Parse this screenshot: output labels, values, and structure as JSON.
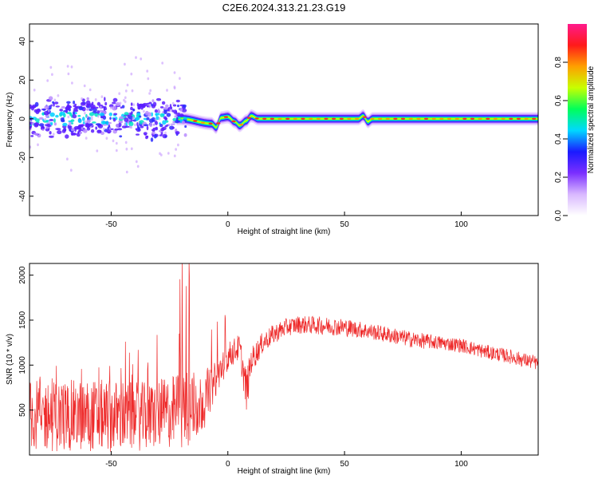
{
  "chart_data": [
    {
      "type": "heatmap",
      "title": "C2E6.2024.313.21.23.G19",
      "xlabel": "Height of straight line (km)",
      "ylabel": "Frequency (Hz)",
      "xlim": [
        -85,
        133
      ],
      "ylim": [
        -50,
        49
      ],
      "x_ticks": [
        -50,
        0,
        50,
        100
      ],
      "x_tick_labels": [
        "-50",
        "0",
        "50",
        "100"
      ],
      "y_ticks": [
        -40,
        -20,
        0,
        20,
        40
      ],
      "y_tick_labels": [
        "-40",
        "-20",
        "0",
        "20",
        "40"
      ],
      "colorbar": {
        "label": "Normalized spectral amplitude",
        "range": [
          0,
          1
        ],
        "ticks": [
          0.0,
          0.2,
          0.4,
          0.6,
          0.8
        ],
        "tick_labels": [
          "0.0",
          "0.2",
          "0.4",
          "0.6",
          "0.8"
        ],
        "colormap": [
          "#ffffff",
          "#d9b8ff",
          "#7b2fff",
          "#1a1aff",
          "#00d8ff",
          "#00ff5a",
          "#c8ff00",
          "#ffa000",
          "#ff1a1a",
          "#ff1a8c"
        ]
      },
      "ridge": [
        {
          "x": -85,
          "f": 0.0
        },
        {
          "x": -60,
          "f": 0.5
        },
        {
          "x": -20,
          "f": 0.0
        },
        {
          "x": -7,
          "f": -2.5
        },
        {
          "x": -5,
          "f": -4.5
        },
        {
          "x": -3,
          "f": 0.5
        },
        {
          "x": 0,
          "f": 1.0
        },
        {
          "x": 3,
          "f": -1.5
        },
        {
          "x": 5,
          "f": -3.5
        },
        {
          "x": 8,
          "f": -1.0
        },
        {
          "x": 10,
          "f": 1.5
        },
        {
          "x": 13,
          "f": 0.0
        },
        {
          "x": 56,
          "f": 0.0
        },
        {
          "x": 58,
          "f": 1.5
        },
        {
          "x": 60,
          "f": -1.5
        },
        {
          "x": 62,
          "f": 0.0
        },
        {
          "x": 133,
          "f": 0.0
        }
      ]
    },
    {
      "type": "line",
      "title": "",
      "xlabel": "Height of straight line (km)",
      "ylabel": "SNR (10 * v/v)",
      "xlim": [
        -85,
        133
      ],
      "ylim": [
        0,
        2130
      ],
      "x_ticks": [
        -50,
        0,
        50,
        100
      ],
      "x_tick_labels": [
        "-50",
        "0",
        "50",
        "100"
      ],
      "y_ticks": [
        500,
        1000,
        1500,
        2000
      ],
      "y_tick_labels": [
        "500",
        "1000",
        "1500",
        "2000"
      ],
      "color": "#ee2a2a",
      "series": [
        {
          "x": [
            -85,
            -75,
            -65,
            -55,
            -45,
            -35,
            -25,
            -20,
            -15,
            -10,
            -5,
            0,
            5,
            8,
            10,
            15,
            20,
            25,
            30,
            40,
            50,
            60,
            70,
            80,
            90,
            100,
            110,
            120,
            133
          ],
          "mean": [
            450,
            430,
            440,
            440,
            430,
            430,
            470,
            500,
            520,
            600,
            850,
            1100,
            1200,
            700,
            1050,
            1250,
            1350,
            1420,
            1450,
            1440,
            1420,
            1380,
            1330,
            1280,
            1250,
            1220,
            1150,
            1100,
            1020
          ],
          "spread": [
            400,
            400,
            400,
            400,
            400,
            380,
            400,
            450,
            450,
            300,
            200,
            150,
            150,
            250,
            150,
            120,
            110,
            100,
            100,
            100,
            100,
            90,
            90,
            90,
            80,
            80,
            80,
            80,
            80
          ]
        }
      ]
    }
  ]
}
